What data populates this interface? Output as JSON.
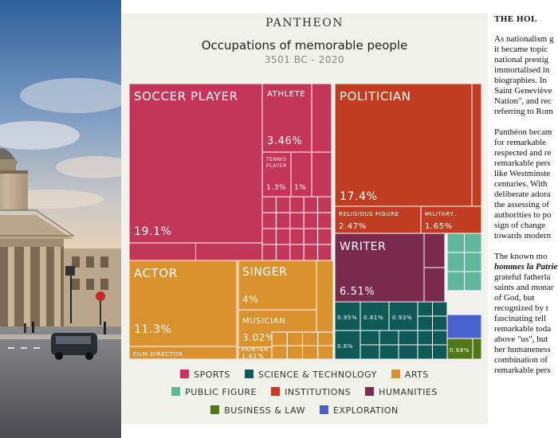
{
  "header": {
    "brand": "PANTHEON",
    "title": "Occupations of memorable people",
    "subtitle": "3501 BC - 2020"
  },
  "colors": {
    "sports": "#c4355a",
    "science": "#0f5a56",
    "arts": "#d9922e",
    "public_figure": "#5fb89b",
    "institutions": "#c13d22",
    "humanities": "#7a2a4c",
    "business": "#507814",
    "exploration": "#4960cf"
  },
  "chart_data": {
    "type": "treemap",
    "title": "Occupations of memorable people",
    "subtitle": "3501 BC - 2020",
    "legend_position": "bottom",
    "groups": [
      {
        "group": "SPORTS",
        "color_key": "sports",
        "items": [
          {
            "label": "SOCCER PLAYER",
            "value": 19.1
          },
          {
            "label": "ATHLETE",
            "value": 3.46
          },
          {
            "label": "TENNIS PLAYER",
            "value": 1.3
          },
          {
            "label": "",
            "value": 1.0
          }
        ]
      },
      {
        "group": "INSTITUTIONS",
        "color_key": "institutions",
        "items": [
          {
            "label": "POLITICIAN",
            "value": 17.4
          },
          {
            "label": "RELIGIOUS FIGURE",
            "value": 2.47
          },
          {
            "label": "MILITARY...",
            "value": 1.65
          }
        ]
      },
      {
        "group": "ARTS",
        "color_key": "arts",
        "items": [
          {
            "label": "ACTOR",
            "value": 11.3
          },
          {
            "label": "FILM DIRECTOR",
            "value": null
          },
          {
            "label": "SINGER",
            "value": 4
          },
          {
            "label": "MUSICIAN",
            "value": 3.02
          },
          {
            "label": "PAINTER",
            "value": 1.61
          }
        ]
      },
      {
        "group": "HUMANITIES",
        "color_key": "humanities",
        "items": [
          {
            "label": "WRITER",
            "value": 6.51
          }
        ]
      },
      {
        "group": "SCIENCE & TECHNOLOGY",
        "color_key": "science",
        "items": [
          {
            "label": "",
            "value": 0.95
          },
          {
            "label": "",
            "value": 0.81
          },
          {
            "label": "",
            "value": 0.93
          },
          {
            "label": "",
            "value": 0.6
          }
        ]
      },
      {
        "group": "BUSINESS & LAW",
        "color_key": "business",
        "items": [
          {
            "label": "",
            "value": 0.68
          }
        ]
      }
    ]
  },
  "legend": [
    {
      "label": "SPORTS",
      "color_key": "sports"
    },
    {
      "label": "SCIENCE & TECHNOLOGY",
      "color_key": "science"
    },
    {
      "label": "ARTS",
      "color_key": "arts"
    },
    {
      "label": "PUBLIC FIGURE",
      "color_key": "public_figure"
    },
    {
      "label": "INSTITUTIONS",
      "color_key": "institutions"
    },
    {
      "label": "HUMANITIES",
      "color_key": "humanities"
    },
    {
      "label": "BUSINESS & LAW",
      "color_key": "business"
    },
    {
      "label": "EXPLORATION",
      "color_key": "exploration"
    }
  ],
  "article": {
    "heading": "THE HOL",
    "paragraphs": [
      [
        "As nationalism g",
        "it became topic",
        "national prestig",
        "immortalised in",
        "biographies. In",
        "Saint Geneviève",
        "Nation\", and rec",
        "referring to Rom"
      ],
      [
        "Panthéon becam",
        "for remarkable",
        "respected and re",
        "remarkable pers",
        "like Westminste",
        "centuries. With",
        "deliberate adora",
        "the assessing of",
        "authorities to po",
        "sign of change",
        "towards modern"
      ],
      [
        "The known mo",
        "hommes la Patrie",
        "grateful fatherla",
        "saints and monar",
        "of God, but",
        "recognized by t",
        "fascinating tell",
        "remarkable toda",
        "above \"us\", but",
        "her humaneness",
        "combination of",
        "remarkable pers"
      ]
    ]
  }
}
